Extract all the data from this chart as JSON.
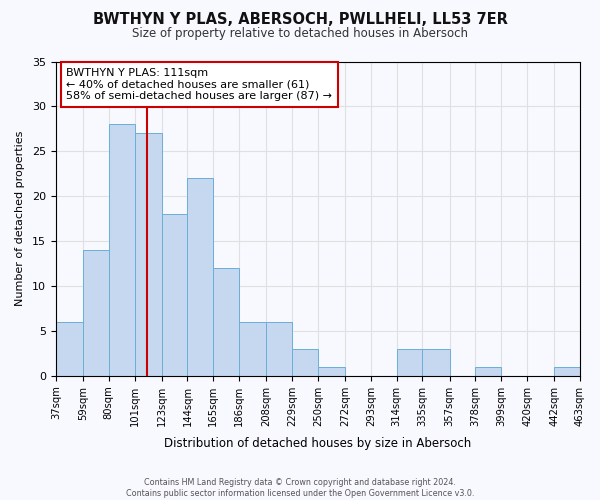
{
  "title": "BWTHYN Y PLAS, ABERSOCH, PWLLHELI, LL53 7ER",
  "subtitle": "Size of property relative to detached houses in Abersoch",
  "xlabel": "Distribution of detached houses by size in Abersoch",
  "ylabel": "Number of detached properties",
  "footer_line1": "Contains HM Land Registry data © Crown copyright and database right 2024.",
  "footer_line2": "Contains public sector information licensed under the Open Government Licence v3.0.",
  "bins": [
    37,
    59,
    80,
    101,
    123,
    144,
    165,
    186,
    208,
    229,
    250,
    272,
    293,
    314,
    335,
    357,
    378,
    399,
    420,
    442,
    463
  ],
  "bin_labels": [
    "37sqm",
    "59sqm",
    "80sqm",
    "101sqm",
    "123sqm",
    "144sqm",
    "165sqm",
    "186sqm",
    "208sqm",
    "229sqm",
    "250sqm",
    "272sqm",
    "293sqm",
    "314sqm",
    "335sqm",
    "357sqm",
    "378sqm",
    "399sqm",
    "420sqm",
    "442sqm",
    "463sqm"
  ],
  "counts": [
    6,
    14,
    28,
    27,
    18,
    22,
    12,
    6,
    6,
    3,
    1,
    0,
    0,
    3,
    3,
    0,
    1,
    0,
    0,
    1
  ],
  "bar_color": "#c5d8f0",
  "bar_edge_color": "#6aaed6",
  "vline_x": 111,
  "vline_color": "#cc0000",
  "annotation_title": "BWTHYN Y PLAS: 111sqm",
  "annotation_line1": "← 40% of detached houses are smaller (61)",
  "annotation_line2": "58% of semi-detached houses are larger (87) →",
  "annotation_box_edge": "#cc0000",
  "ylim": [
    0,
    35
  ],
  "yticks": [
    0,
    5,
    10,
    15,
    20,
    25,
    30,
    35
  ],
  "grid_color": "#e0e0e0",
  "background_color": "#f8f8ff"
}
